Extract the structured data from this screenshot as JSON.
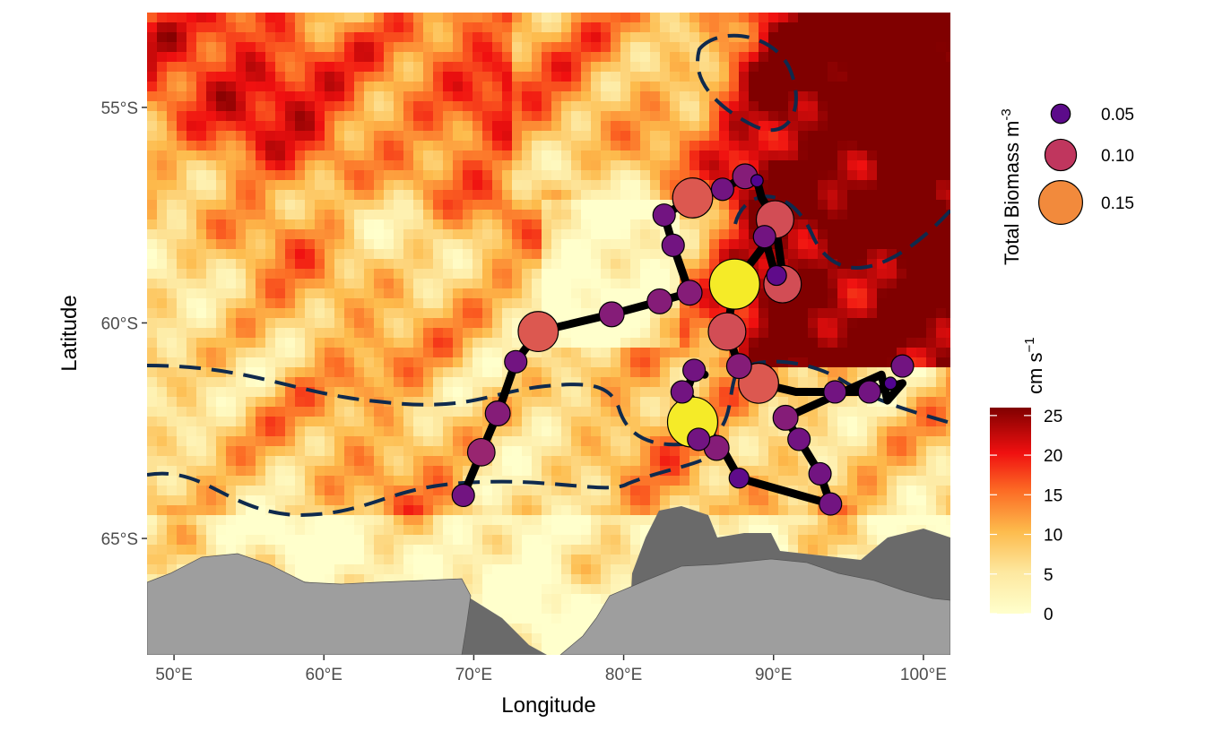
{
  "axes": {
    "x_title": "Longitude",
    "y_title": "Latitude",
    "x_ticks": [
      "50°E",
      "60°E",
      "70°E",
      "80°E",
      "90°E",
      "100°E"
    ],
    "x_tick_values": [
      50,
      60,
      70,
      80,
      90,
      100
    ],
    "y_ticks": [
      "55°S",
      "60°S",
      "65°S"
    ],
    "y_tick_values": [
      -55,
      -60,
      -65
    ],
    "lon_range": [
      48.2,
      101.8
    ],
    "lat_range": [
      -67.7,
      -52.8
    ]
  },
  "legends": {
    "size_title": "Total Biomass m",
    "size_title_exp": "-3",
    "size_items": [
      {
        "label": "0.05",
        "value": 0.05,
        "color": "#5c0b8a"
      },
      {
        "label": "0.10",
        "value": 0.1,
        "color": "#c0365e"
      },
      {
        "label": "0.15",
        "value": 0.15,
        "color": "#f28a3c"
      }
    ],
    "color_title": "cm s",
    "color_title_exp": "−1",
    "color_ticks": [
      "25",
      "20",
      "15",
      "10",
      "5",
      "0"
    ],
    "color_tick_values": [
      25,
      20,
      15,
      10,
      5,
      0
    ],
    "color_range": [
      0,
      26
    ]
  },
  "colors": {
    "land": "#9e9e9e",
    "ice_shelf": "#6a6a6a",
    "front_line": "#0f2a4d",
    "track": "#000000",
    "scale_low": "#ffffcc",
    "scale_high": "#800000"
  },
  "chart_data": {
    "type": "map",
    "title": "",
    "xlabel": "Longitude",
    "ylabel": "Latitude",
    "xlim": [
      48.2,
      101.8
    ],
    "ylim": [
      -67.7,
      -52.8
    ],
    "color_scale": {
      "label": "cm s−1",
      "range": [
        0,
        26
      ]
    },
    "size_scale": {
      "label": "Total Biomass m−3",
      "breaks": [
        0.05,
        0.1,
        0.15
      ]
    },
    "ship_track": [
      [
        69.3,
        -64.0
      ],
      [
        70.5,
        -63.0
      ],
      [
        71.6,
        -62.1
      ],
      [
        72.8,
        -60.9
      ],
      [
        74.3,
        -60.2
      ],
      [
        79.2,
        -59.8
      ],
      [
        82.4,
        -59.5
      ],
      [
        84.4,
        -59.3
      ],
      [
        83.3,
        -58.2
      ],
      [
        82.7,
        -57.5
      ],
      [
        84.6,
        -57.1
      ],
      [
        86.6,
        -56.9
      ],
      [
        88.1,
        -56.6
      ],
      [
        88.9,
        -56.7
      ],
      [
        89.2,
        -57.1
      ],
      [
        90.1,
        -57.6
      ],
      [
        90.6,
        -58.9
      ],
      [
        90.3,
        -59.1
      ],
      [
        89.4,
        -58.0
      ],
      [
        89.6,
        -58.1
      ],
      [
        87.4,
        -59.1
      ],
      [
        86.9,
        -60.2
      ],
      [
        87.7,
        -61.0
      ],
      [
        89.0,
        -61.4
      ],
      [
        91.5,
        -61.6
      ],
      [
        94.1,
        -61.6
      ],
      [
        96.4,
        -61.6
      ],
      [
        98.6,
        -61.4
      ],
      [
        97.6,
        -61.8
      ],
      [
        97.2,
        -61.2
      ],
      [
        90.8,
        -62.2
      ],
      [
        91.7,
        -62.7
      ],
      [
        93.1,
        -63.5
      ],
      [
        93.8,
        -64.2
      ],
      [
        87.7,
        -63.6
      ],
      [
        86.4,
        -62.8
      ],
      [
        84.9,
        -62.6
      ],
      [
        85.6,
        -62.3
      ],
      [
        84.2,
        -61.6
      ],
      [
        84.7,
        -61.1
      ],
      [
        85.4,
        -61.2
      ]
    ],
    "stations": [
      {
        "lon": 69.3,
        "lat": -64.0,
        "biomass": 0.06
      },
      {
        "lon": 70.5,
        "lat": -63.0,
        "biomass": 0.08
      },
      {
        "lon": 71.6,
        "lat": -62.1,
        "biomass": 0.07
      },
      {
        "lon": 72.8,
        "lat": -60.9,
        "biomass": 0.06
      },
      {
        "lon": 74.3,
        "lat": -60.2,
        "biomass": 0.13
      },
      {
        "lon": 79.2,
        "lat": -59.8,
        "biomass": 0.07
      },
      {
        "lon": 82.4,
        "lat": -59.5,
        "biomass": 0.07
      },
      {
        "lon": 84.4,
        "lat": -59.3,
        "biomass": 0.07
      },
      {
        "lon": 83.3,
        "lat": -58.2,
        "biomass": 0.06
      },
      {
        "lon": 82.7,
        "lat": -57.5,
        "biomass": 0.06
      },
      {
        "lon": 84.6,
        "lat": -57.1,
        "biomass": 0.13
      },
      {
        "lon": 86.6,
        "lat": -56.9,
        "biomass": 0.06
      },
      {
        "lon": 88.1,
        "lat": -56.6,
        "biomass": 0.07
      },
      {
        "lon": 88.9,
        "lat": -56.7,
        "biomass": 0.02
      },
      {
        "lon": 90.1,
        "lat": -57.6,
        "biomass": 0.12
      },
      {
        "lon": 89.4,
        "lat": -58.0,
        "biomass": 0.06
      },
      {
        "lon": 90.2,
        "lat": -58.9,
        "biomass": 0.05
      },
      {
        "lon": 90.6,
        "lat": -59.1,
        "biomass": 0.12
      },
      {
        "lon": 87.4,
        "lat": -59.1,
        "biomass": 0.17
      },
      {
        "lon": 86.9,
        "lat": -60.2,
        "biomass": 0.12
      },
      {
        "lon": 87.7,
        "lat": -61.0,
        "biomass": 0.07
      },
      {
        "lon": 89.0,
        "lat": -61.4,
        "biomass": 0.13
      },
      {
        "lon": 94.1,
        "lat": -61.6,
        "biomass": 0.06
      },
      {
        "lon": 96.4,
        "lat": -61.6,
        "biomass": 0.06
      },
      {
        "lon": 97.8,
        "lat": -61.4,
        "biomass": 0.02
      },
      {
        "lon": 98.6,
        "lat": -61.0,
        "biomass": 0.06
      },
      {
        "lon": 84.7,
        "lat": -61.1,
        "biomass": 0.06
      },
      {
        "lon": 83.9,
        "lat": -61.6,
        "biomass": 0.06
      },
      {
        "lon": 84.6,
        "lat": -62.3,
        "biomass": 0.17
      },
      {
        "lon": 85.0,
        "lat": -62.7,
        "biomass": 0.06
      },
      {
        "lon": 86.2,
        "lat": -62.9,
        "biomass": 0.07
      },
      {
        "lon": 87.7,
        "lat": -63.6,
        "biomass": 0.05
      },
      {
        "lon": 90.8,
        "lat": -62.2,
        "biomass": 0.07
      },
      {
        "lon": 91.7,
        "lat": -62.7,
        "biomass": 0.06
      },
      {
        "lon": 93.1,
        "lat": -63.5,
        "biomass": 0.06
      },
      {
        "lon": 93.8,
        "lat": -64.2,
        "biomass": 0.06
      }
    ]
  }
}
